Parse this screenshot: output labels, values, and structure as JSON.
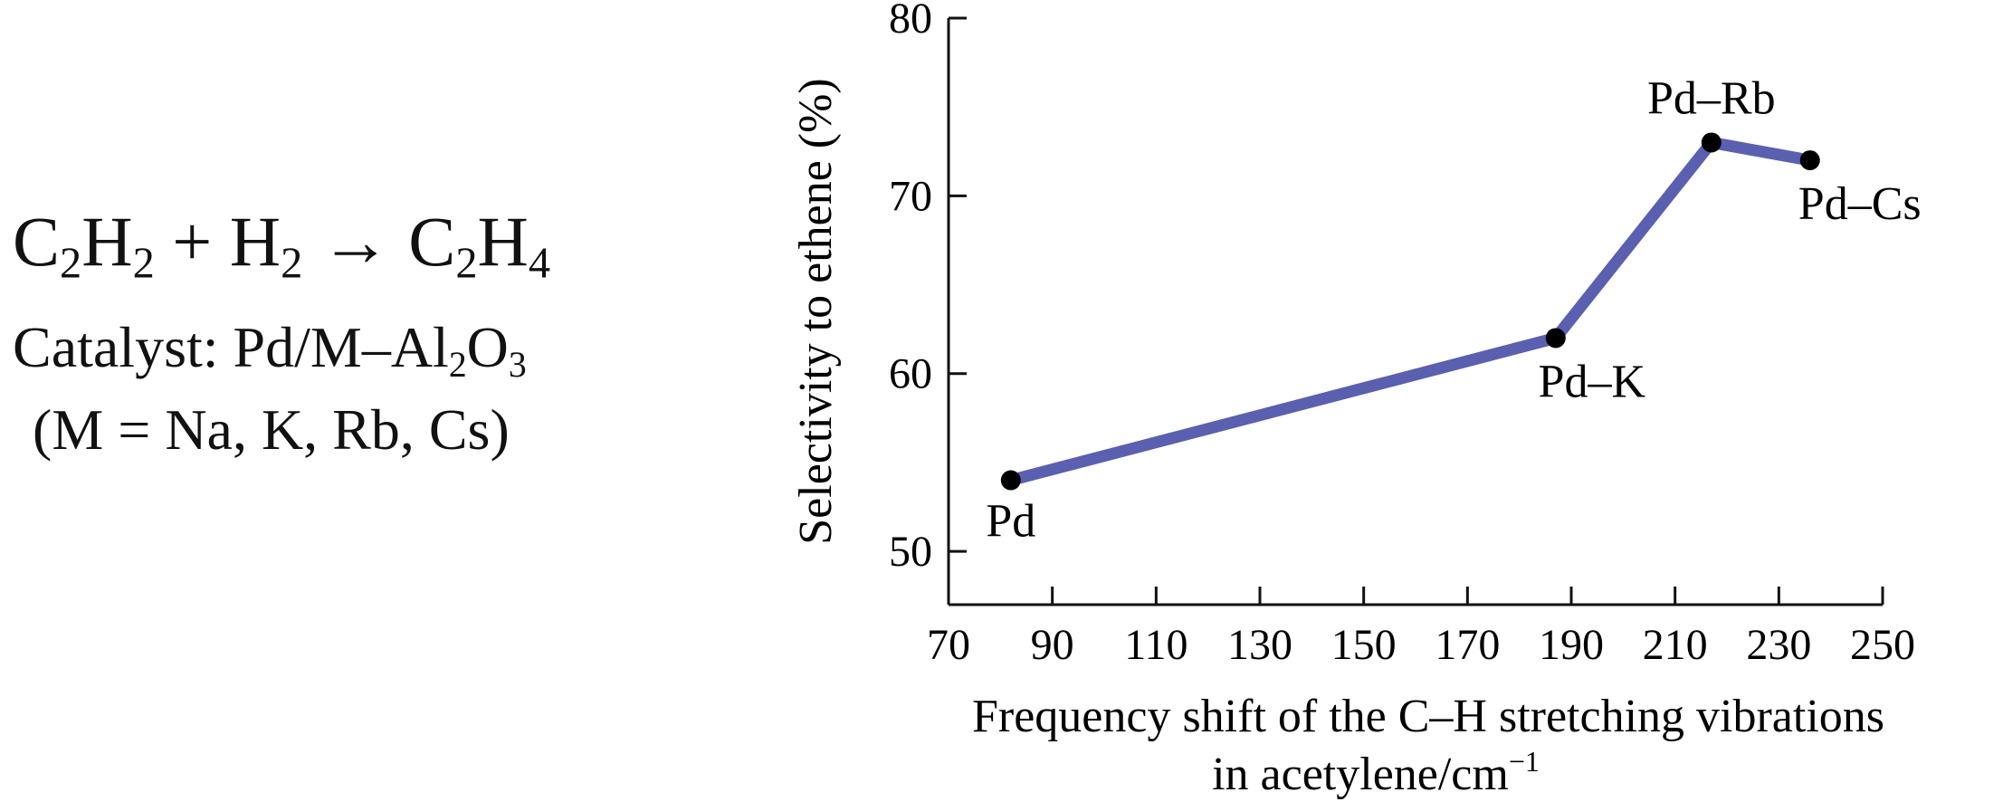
{
  "reaction": {
    "r1": "C",
    "r1_sub": "2",
    "r1b": "H",
    "r1b_sub": "2",
    "plus": "+",
    "r2": "H",
    "r2_sub": "2",
    "arrow": "→",
    "p1": "C",
    "p1_sub": "2",
    "p1b": "H",
    "p1b_sub": "4"
  },
  "catalyst": {
    "text": "Catalyst: Pd/M–Al",
    "sub1": "2",
    "mid": "O",
    "sub2": "3"
  },
  "metals": "(M = Na, K, Rb, Cs)",
  "chart_data": {
    "type": "line",
    "x": [
      82,
      187,
      217,
      236
    ],
    "y": [
      54,
      62,
      73,
      72
    ],
    "point_labels": [
      "Pd",
      "Pd–K",
      "Pd–Rb",
      "Pd–Cs"
    ],
    "xlim": [
      70,
      250
    ],
    "ylim": [
      47,
      80
    ],
    "xticks": [
      70,
      90,
      110,
      130,
      150,
      170,
      190,
      210,
      230,
      250
    ],
    "yticks": [
      50,
      60,
      70,
      80
    ],
    "xlabel_line1": "Frequency shift of the C–H stretching vibrations",
    "xlabel_line2": "in acetylene/cm",
    "xlabel_line2_sup": "−1",
    "ylabel": "Selectivity to ethene (%)",
    "line_color": "#5a5fb0",
    "marker_color": "#000000",
    "grid": false,
    "legend": "none"
  }
}
